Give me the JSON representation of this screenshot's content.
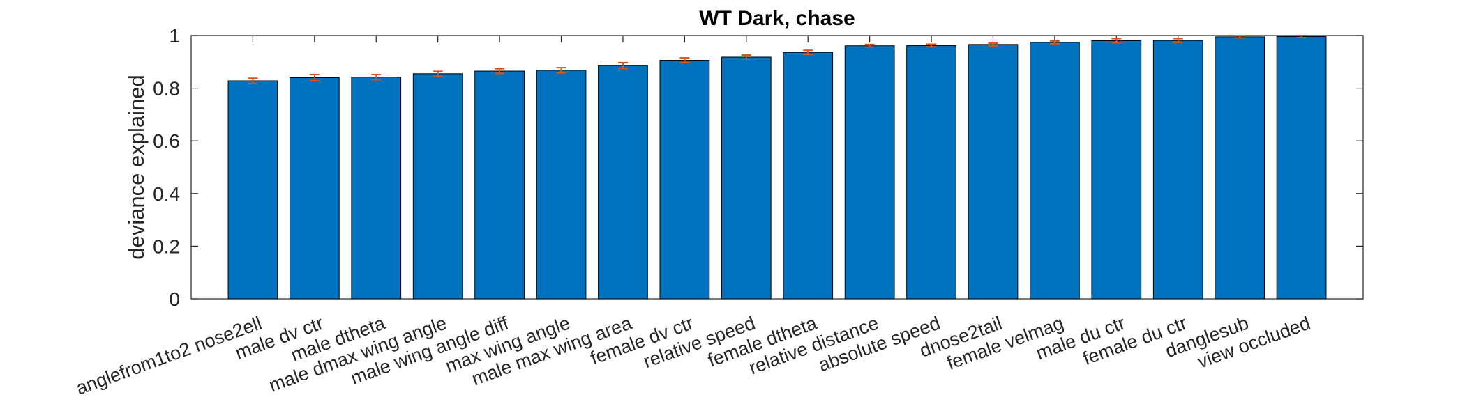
{
  "chart_data": {
    "type": "bar",
    "title": "WT Dark, chase",
    "xlabel": "",
    "ylabel": "deviance explained",
    "ylim": [
      0,
      1
    ],
    "yticks": [
      0,
      0.2,
      0.4,
      0.6,
      0.8,
      1
    ],
    "ytick_labels": [
      "0",
      "0.2",
      "0.4",
      "0.6",
      "0.8",
      "1"
    ],
    "grid": false,
    "legend": "none",
    "bar_color": "#0072BD",
    "error_bar_color": "#D95319",
    "categories": [
      "anglefrom1to2 nose2ell",
      "male dv ctr",
      "male dtheta",
      "male dmax wing angle",
      "male wing angle diff",
      "max wing angle",
      "male max wing area",
      "female dv ctr",
      "relative speed",
      "female dtheta",
      "relative distance",
      "absolute speed",
      "dnose2tail",
      "female velmag",
      "male du ctr",
      "female du ctr",
      "danglesub",
      "view occluded"
    ],
    "values": [
      0.828,
      0.84,
      0.842,
      0.855,
      0.865,
      0.868,
      0.886,
      0.906,
      0.918,
      0.936,
      0.961,
      0.962,
      0.966,
      0.974,
      0.98,
      0.981,
      0.995,
      0.996
    ],
    "errors": [
      0.01,
      0.012,
      0.01,
      0.009,
      0.009,
      0.01,
      0.011,
      0.009,
      0.008,
      0.008,
      0.005,
      0.005,
      0.005,
      0.005,
      0.008,
      0.007,
      0.004,
      0.004
    ]
  }
}
